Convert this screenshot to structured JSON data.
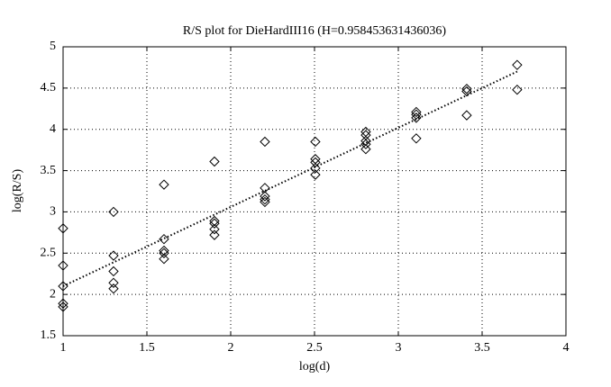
{
  "chart_data": {
    "type": "scatter",
    "title": "R/S plot for DieHardIII16 (H=0.958453631436036)",
    "xlabel": "log(d)",
    "ylabel": "log(R/S)",
    "xlim": [
      1,
      4
    ],
    "ylim": [
      1.5,
      5
    ],
    "xticks": [
      1,
      1.5,
      2,
      2.5,
      3,
      3.5,
      4
    ],
    "yticks": [
      1.5,
      2,
      2.5,
      3,
      3.5,
      4,
      4.5,
      5
    ],
    "grid": true,
    "series": [
      {
        "marker": "diamond",
        "color": "#000000",
        "x": [
          1,
          1,
          1,
          1,
          1,
          1.301,
          1.301,
          1.301,
          1.301,
          1.301,
          1.602,
          1.602,
          1.602,
          1.602,
          1.602,
          1.903,
          1.903,
          1.903,
          1.903,
          1.903,
          2.204,
          2.204,
          2.204,
          2.204,
          2.204,
          2.505,
          2.505,
          2.505,
          2.505,
          2.505,
          2.806,
          2.806,
          2.806,
          2.806,
          2.806,
          3.107,
          3.107,
          3.107,
          3.107,
          3.408,
          3.408,
          3.408,
          3.709,
          3.709
        ],
        "values": [
          2.8,
          2.35,
          2.1,
          1.89,
          1.85,
          3.0,
          2.47,
          2.28,
          2.14,
          2.07,
          3.33,
          2.67,
          2.53,
          2.5,
          2.43,
          3.61,
          2.89,
          2.86,
          2.79,
          2.72,
          3.85,
          3.29,
          3.19,
          3.15,
          3.12,
          3.85,
          3.64,
          3.6,
          3.53,
          3.45,
          3.97,
          3.93,
          3.86,
          3.82,
          3.76,
          4.21,
          4.18,
          4.14,
          3.89,
          4.49,
          4.46,
          4.17,
          4.78,
          4.48
        ]
      },
      {
        "marker": "none",
        "line": "dotted",
        "color": "#000000",
        "x": [
          1,
          3.709
        ],
        "values": [
          2.1,
          4.7
        ]
      }
    ]
  }
}
